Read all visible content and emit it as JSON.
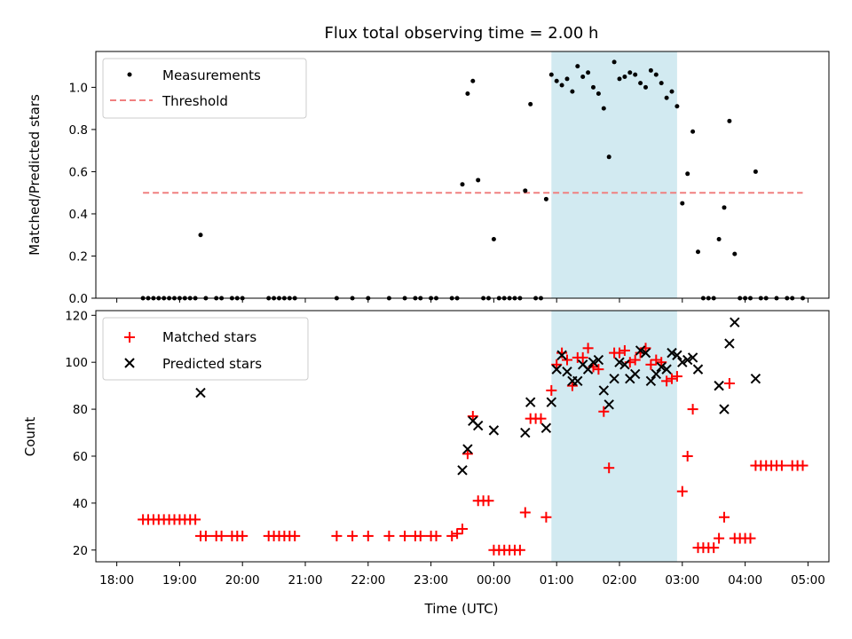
{
  "chart_data": [
    {
      "type": "scatter",
      "title": "Flux total observing time = 2.00 h",
      "xlabel": "",
      "ylabel": "Matched/Predicted stars",
      "xlim": [
        "18:00",
        "05:00"
      ],
      "ylim": [
        0,
        1.17
      ],
      "y_ticks": [
        "0.0",
        "0.2",
        "0.4",
        "0.6",
        "0.8",
        "1.0"
      ],
      "legend": {
        "position": "top-left",
        "entries": [
          "Measurements",
          "Threshold"
        ]
      },
      "threshold": {
        "name": "Threshold",
        "value": 0.5,
        "x_range": [
          "18:25",
          "04:55"
        ],
        "color": "#f08080"
      },
      "highlight": {
        "x_range": [
          "00:55",
          "02:55"
        ],
        "color": "#add8e6"
      },
      "series": [
        {
          "name": "Measurements",
          "color": "#000000",
          "points": [
            [
              "18:25",
              0
            ],
            [
              "18:30",
              0
            ],
            [
              "18:35",
              0
            ],
            [
              "18:40",
              0
            ],
            [
              "18:45",
              0
            ],
            [
              "18:50",
              0
            ],
            [
              "18:55",
              0
            ],
            [
              "19:00",
              0
            ],
            [
              "19:05",
              0
            ],
            [
              "19:10",
              0
            ],
            [
              "19:15",
              0
            ],
            [
              "19:20",
              0.3
            ],
            [
              "19:25",
              0
            ],
            [
              "19:35",
              0
            ],
            [
              "19:40",
              0
            ],
            [
              "19:50",
              0
            ],
            [
              "19:55",
              0
            ],
            [
              "20:00",
              0
            ],
            [
              "20:25",
              0
            ],
            [
              "20:30",
              0
            ],
            [
              "20:35",
              0
            ],
            [
              "20:40",
              0
            ],
            [
              "20:45",
              0
            ],
            [
              "20:50",
              0
            ],
            [
              "21:30",
              0
            ],
            [
              "21:45",
              0
            ],
            [
              "22:00",
              0
            ],
            [
              "22:20",
              0
            ],
            [
              "22:35",
              0
            ],
            [
              "22:45",
              0
            ],
            [
              "22:50",
              0
            ],
            [
              "23:00",
              0
            ],
            [
              "23:05",
              0
            ],
            [
              "23:20",
              0
            ],
            [
              "23:25",
              0
            ],
            [
              "23:30",
              0.54
            ],
            [
              "23:35",
              0.97
            ],
            [
              "23:40",
              1.03
            ],
            [
              "23:45",
              0.56
            ],
            [
              "23:50",
              0
            ],
            [
              "23:55",
              0
            ],
            [
              "00:00",
              0.28
            ],
            [
              "00:05",
              0
            ],
            [
              "00:10",
              0
            ],
            [
              "00:15",
              0
            ],
            [
              "00:20",
              0
            ],
            [
              "00:25",
              0
            ],
            [
              "00:30",
              0.51
            ],
            [
              "00:35",
              0.92
            ],
            [
              "00:40",
              0
            ],
            [
              "00:45",
              0
            ],
            [
              "00:50",
              0.47
            ],
            [
              "00:55",
              1.06
            ],
            [
              "01:00",
              1.03
            ],
            [
              "01:05",
              1.01
            ],
            [
              "01:10",
              1.04
            ],
            [
              "01:15",
              0.98
            ],
            [
              "01:20",
              1.1
            ],
            [
              "01:25",
              1.05
            ],
            [
              "01:30",
              1.07
            ],
            [
              "01:35",
              1.0
            ],
            [
              "01:40",
              0.97
            ],
            [
              "01:45",
              0.9
            ],
            [
              "01:50",
              0.67
            ],
            [
              "01:55",
              1.12
            ],
            [
              "02:00",
              1.04
            ],
            [
              "02:05",
              1.05
            ],
            [
              "02:10",
              1.07
            ],
            [
              "02:15",
              1.06
            ],
            [
              "02:20",
              1.02
            ],
            [
              "02:25",
              1.0
            ],
            [
              "02:30",
              1.08
            ],
            [
              "02:35",
              1.06
            ],
            [
              "02:40",
              1.02
            ],
            [
              "02:45",
              0.95
            ],
            [
              "02:50",
              0.98
            ],
            [
              "02:55",
              0.91
            ],
            [
              "03:00",
              0.45
            ],
            [
              "03:05",
              0.59
            ],
            [
              "03:10",
              0.79
            ],
            [
              "03:15",
              0.22
            ],
            [
              "03:20",
              0
            ],
            [
              "03:25",
              0
            ],
            [
              "03:30",
              0
            ],
            [
              "03:35",
              0.28
            ],
            [
              "03:40",
              0.43
            ],
            [
              "03:45",
              0.84
            ],
            [
              "03:50",
              0.21
            ],
            [
              "03:55",
              0
            ],
            [
              "04:00",
              0
            ],
            [
              "04:05",
              0
            ],
            [
              "04:10",
              0.6
            ],
            [
              "04:15",
              0
            ],
            [
              "04:20",
              0
            ],
            [
              "04:30",
              0
            ],
            [
              "04:40",
              0
            ],
            [
              "04:45",
              0
            ],
            [
              "04:55",
              0
            ]
          ]
        }
      ]
    },
    {
      "type": "scatter",
      "title": "",
      "xlabel": "Time (UTC)",
      "ylabel": "Count",
      "xlim": [
        "18:00",
        "05:00"
      ],
      "ylim": [
        15,
        122
      ],
      "x_ticks": [
        "18:00",
        "19:00",
        "20:00",
        "21:00",
        "22:00",
        "23:00",
        "00:00",
        "01:00",
        "02:00",
        "03:00",
        "04:00",
        "05:00"
      ],
      "y_ticks": [
        "20",
        "40",
        "60",
        "80",
        "100",
        "120"
      ],
      "legend": {
        "position": "top-left",
        "entries": [
          "Matched stars",
          "Predicted stars"
        ]
      },
      "highlight": {
        "x_range": [
          "00:55",
          "02:55"
        ],
        "color": "#add8e6"
      },
      "series": [
        {
          "name": "Matched stars",
          "marker": "+",
          "color": "#ff0000",
          "points": [
            [
              "18:25",
              33
            ],
            [
              "18:30",
              33
            ],
            [
              "18:35",
              33
            ],
            [
              "18:40",
              33
            ],
            [
              "18:45",
              33
            ],
            [
              "18:50",
              33
            ],
            [
              "18:55",
              33
            ],
            [
              "19:00",
              33
            ],
            [
              "19:05",
              33
            ],
            [
              "19:10",
              33
            ],
            [
              "19:15",
              33
            ],
            [
              "19:20",
              26
            ],
            [
              "19:25",
              26
            ],
            [
              "19:35",
              26
            ],
            [
              "19:40",
              26
            ],
            [
              "19:50",
              26
            ],
            [
              "19:55",
              26
            ],
            [
              "20:00",
              26
            ],
            [
              "20:25",
              26
            ],
            [
              "20:30",
              26
            ],
            [
              "20:35",
              26
            ],
            [
              "20:40",
              26
            ],
            [
              "20:45",
              26
            ],
            [
              "20:50",
              26
            ],
            [
              "21:30",
              26
            ],
            [
              "21:45",
              26
            ],
            [
              "22:00",
              26
            ],
            [
              "22:20",
              26
            ],
            [
              "22:35",
              26
            ],
            [
              "22:45",
              26
            ],
            [
              "22:50",
              26
            ],
            [
              "23:00",
              26
            ],
            [
              "23:05",
              26
            ],
            [
              "23:20",
              26
            ],
            [
              "23:25",
              27
            ],
            [
              "23:30",
              29
            ],
            [
              "23:35",
              61
            ],
            [
              "23:40",
              77
            ],
            [
              "23:45",
              41
            ],
            [
              "23:50",
              41
            ],
            [
              "23:55",
              41
            ],
            [
              "00:00",
              20
            ],
            [
              "00:05",
              20
            ],
            [
              "00:10",
              20
            ],
            [
              "00:15",
              20
            ],
            [
              "00:20",
              20
            ],
            [
              "00:25",
              20
            ],
            [
              "00:30",
              36
            ],
            [
              "00:35",
              76
            ],
            [
              "00:40",
              76
            ],
            [
              "00:45",
              76
            ],
            [
              "00:50",
              34
            ],
            [
              "00:55",
              88
            ],
            [
              "01:00",
              99
            ],
            [
              "01:05",
              104
            ],
            [
              "01:10",
              101
            ],
            [
              "01:15",
              90
            ],
            [
              "01:20",
              102
            ],
            [
              "01:25",
              102
            ],
            [
              "01:30",
              106
            ],
            [
              "01:35",
              98
            ],
            [
              "01:40",
              97
            ],
            [
              "01:45",
              79
            ],
            [
              "01:50",
              55
            ],
            [
              "01:55",
              104
            ],
            [
              "02:00",
              104
            ],
            [
              "02:05",
              105
            ],
            [
              "02:10",
              100
            ],
            [
              "02:15",
              101
            ],
            [
              "02:20",
              104
            ],
            [
              "02:25",
              106
            ],
            [
              "02:30",
              99
            ],
            [
              "02:35",
              101
            ],
            [
              "02:40",
              100
            ],
            [
              "02:45",
              92
            ],
            [
              "02:50",
              93
            ],
            [
              "02:55",
              94
            ],
            [
              "03:00",
              45
            ],
            [
              "03:05",
              60
            ],
            [
              "03:10",
              80
            ],
            [
              "03:15",
              21
            ],
            [
              "03:20",
              21
            ],
            [
              "03:25",
              21
            ],
            [
              "03:30",
              21
            ],
            [
              "03:35",
              25
            ],
            [
              "03:40",
              34
            ],
            [
              "03:45",
              91
            ],
            [
              "03:50",
              25
            ],
            [
              "03:55",
              25
            ],
            [
              "04:00",
              25
            ],
            [
              "04:05",
              25
            ],
            [
              "04:10",
              56
            ],
            [
              "04:15",
              56
            ],
            [
              "04:20",
              56
            ],
            [
              "04:25",
              56
            ],
            [
              "04:30",
              56
            ],
            [
              "04:35",
              56
            ],
            [
              "04:45",
              56
            ],
            [
              "04:50",
              56
            ],
            [
              "04:55",
              56
            ]
          ]
        },
        {
          "name": "Predicted stars",
          "marker": "x",
          "color": "#000000",
          "points": [
            [
              "19:20",
              87
            ],
            [
              "23:30",
              54
            ],
            [
              "23:35",
              63
            ],
            [
              "23:40",
              75
            ],
            [
              "23:45",
              73
            ],
            [
              "00:00",
              71
            ],
            [
              "00:30",
              70
            ],
            [
              "00:35",
              83
            ],
            [
              "00:50",
              72
            ],
            [
              "00:55",
              83
            ],
            [
              "01:00",
              97
            ],
            [
              "01:05",
              103
            ],
            [
              "01:10",
              96
            ],
            [
              "01:15",
              92
            ],
            [
              "01:20",
              92
            ],
            [
              "01:25",
              99
            ],
            [
              "01:30",
              97
            ],
            [
              "01:35",
              100
            ],
            [
              "01:40",
              101
            ],
            [
              "01:45",
              88
            ],
            [
              "01:50",
              82
            ],
            [
              "01:55",
              93
            ],
            [
              "02:00",
              100
            ],
            [
              "02:05",
              99
            ],
            [
              "02:10",
              93
            ],
            [
              "02:15",
              95
            ],
            [
              "02:20",
              105
            ],
            [
              "02:25",
              104
            ],
            [
              "02:30",
              92
            ],
            [
              "02:35",
              95
            ],
            [
              "02:40",
              98
            ],
            [
              "02:45",
              97
            ],
            [
              "02:50",
              104
            ],
            [
              "02:55",
              103
            ],
            [
              "03:00",
              100
            ],
            [
              "03:05",
              101
            ],
            [
              "03:10",
              102
            ],
            [
              "03:15",
              97
            ],
            [
              "03:35",
              90
            ],
            [
              "03:40",
              80
            ],
            [
              "03:45",
              108
            ],
            [
              "03:50",
              117
            ],
            [
              "04:10",
              93
            ]
          ]
        }
      ]
    }
  ]
}
